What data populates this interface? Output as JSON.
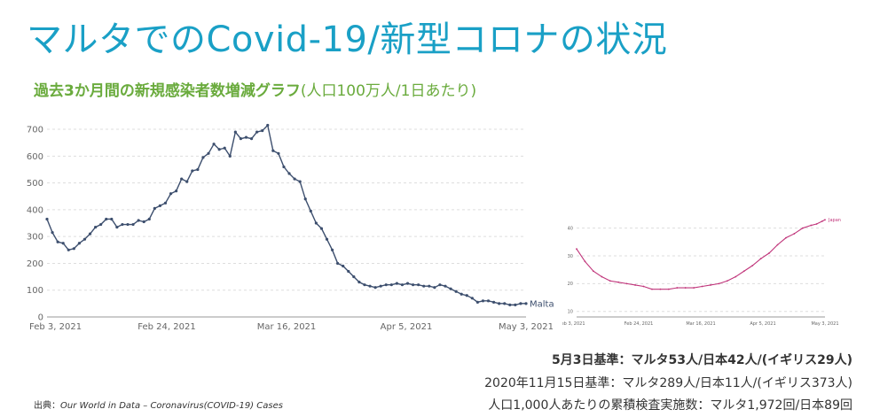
{
  "header": {
    "title": "マルタでのCovid-19/新型コロナの状況",
    "subtitle_bold": "過去3か月間の新規感染者数増減グラフ",
    "subtitle_paren": "(人口100万人/1日あたり)"
  },
  "chart_data": [
    {
      "type": "line",
      "x_ticks": [
        "Feb 3, 2021",
        "Feb 24, 2021",
        "Mar 16, 2021",
        "Apr 5, 2021",
        "May 3, 2021"
      ],
      "y_ticks": [
        "0",
        "100",
        "200",
        "300",
        "400",
        "500",
        "600",
        "700"
      ],
      "ylim": [
        0,
        720
      ],
      "xlim": [
        0,
        89
      ],
      "grid": true,
      "series": [
        {
          "name": "Malta",
          "color": "#3d4f6e",
          "x": [
            0,
            1,
            2,
            3,
            4,
            5,
            6,
            7,
            8,
            9,
            10,
            11,
            12,
            13,
            14,
            15,
            16,
            17,
            18,
            19,
            20,
            21,
            22,
            23,
            24,
            25,
            26,
            27,
            28,
            29,
            30,
            31,
            32,
            33,
            34,
            35,
            36,
            37,
            38,
            39,
            40,
            41,
            42,
            43,
            44,
            45,
            46,
            47,
            48,
            49,
            50,
            51,
            52,
            53,
            54,
            55,
            56,
            57,
            58,
            59,
            60,
            61,
            62,
            63,
            64,
            65,
            66,
            67,
            68,
            69,
            70,
            71,
            72,
            73,
            74,
            75,
            76,
            77,
            78,
            79,
            80,
            81,
            82,
            83,
            84,
            85,
            86,
            87,
            88,
            89
          ],
          "values": [
            365,
            315,
            280,
            275,
            250,
            255,
            275,
            290,
            310,
            335,
            345,
            365,
            365,
            335,
            345,
            345,
            345,
            360,
            355,
            365,
            405,
            415,
            425,
            460,
            470,
            515,
            505,
            545,
            550,
            595,
            610,
            645,
            625,
            630,
            600,
            690,
            665,
            670,
            665,
            690,
            695,
            715,
            620,
            610,
            560,
            535,
            515,
            505,
            440,
            395,
            350,
            330,
            290,
            250,
            200,
            190,
            170,
            150,
            130,
            120,
            115,
            110,
            115,
            120,
            120,
            125,
            120,
            125,
            120,
            120,
            115,
            115,
            110,
            120,
            115,
            105,
            95,
            85,
            80,
            70,
            55,
            60,
            60,
            55,
            50,
            50,
            45,
            45,
            50,
            50
          ]
        }
      ]
    },
    {
      "type": "line",
      "x_ticks": [
        "Feb 3, 2021",
        "Feb 24, 2021",
        "Mar 16, 2021",
        "Apr 5, 2021",
        "May 3, 2021"
      ],
      "y_ticks": [
        "10",
        "20",
        "30",
        "40"
      ],
      "ylim": [
        8,
        45
      ],
      "xlim": [
        0,
        89
      ],
      "grid": true,
      "series": [
        {
          "name": "Japan",
          "color": "#c0347a",
          "x": [
            0,
            3,
            6,
            9,
            12,
            15,
            18,
            21,
            24,
            27,
            30,
            33,
            36,
            39,
            42,
            45,
            48,
            51,
            54,
            57,
            60,
            63,
            66,
            69,
            72,
            75,
            78,
            81,
            84,
            86,
            88,
            89
          ],
          "values": [
            32.5,
            28,
            24.5,
            22.5,
            21,
            20.5,
            20,
            19.5,
            19,
            18,
            18,
            18,
            18.5,
            18.5,
            18.5,
            19,
            19.5,
            20,
            21,
            22.5,
            24.5,
            26.5,
            29,
            31,
            34,
            36.5,
            38,
            40,
            41,
            41.5,
            42.5,
            43
          ]
        }
      ]
    }
  ],
  "summary": {
    "line1": "5月3日基準：マルタ53人/日本42人/(イギリス29人)",
    "line2": "2020年11月15日基準：マルタ289人/日本11人/(イギリス373人)",
    "line3": "人口1,000人あたりの累積検査実施数：マルタ1,972回/日本89回"
  },
  "source": {
    "prefix": "出典：",
    "text": "Our World in Data – Coronavirus(COVID-19) Cases"
  }
}
